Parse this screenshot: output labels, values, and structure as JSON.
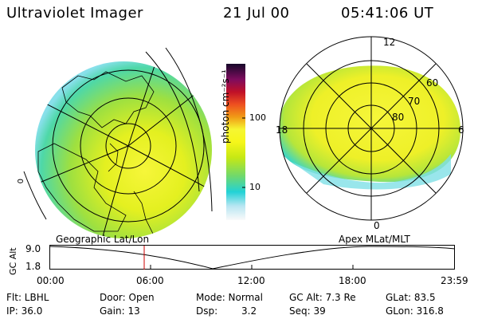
{
  "header": {
    "title": "Ultraviolet Imager",
    "date": "21 Jul 00",
    "time": "05:41:06 UT"
  },
  "left_panel": {
    "caption": "Geographic Lat/Lon",
    "edge_label": "0"
  },
  "right_panel": {
    "caption": "Apex MLat/MLT",
    "mlt_labels": [
      "12",
      "18",
      "6",
      "0"
    ],
    "lat_labels": [
      "60",
      "70",
      "80"
    ]
  },
  "colorbar": {
    "unit_label": "photon cm⁻²s⁻¹",
    "ticks": [
      "100",
      "10"
    ],
    "stops": [
      "#fafafa",
      "#b8e6f2",
      "#22d2d6",
      "#6ed86e",
      "#c6e814",
      "#f6f61a",
      "#f6f632",
      "#f09a16",
      "#ee5020",
      "#c01028",
      "#7e0c5e",
      "#16082a"
    ]
  },
  "timeline": {
    "ylabel": "GC Alt",
    "yticks": [
      "9.0",
      "1.8"
    ],
    "xticks": [
      "00:00",
      "06:00",
      "12:00",
      "18:00",
      "23:59"
    ],
    "current_marker_color": "#cc0000"
  },
  "info": {
    "row1": [
      "Flt: LBHL",
      "Door: Open",
      "Mode: Normal",
      "GC Alt: 7.3 Re",
      "GLat: 83.5"
    ],
    "row2": [
      "IP: 36.0",
      "Gain: 13",
      "Dsp:",
      "3.2",
      "Seq: 39",
      "GLon: 316.8"
    ]
  }
}
